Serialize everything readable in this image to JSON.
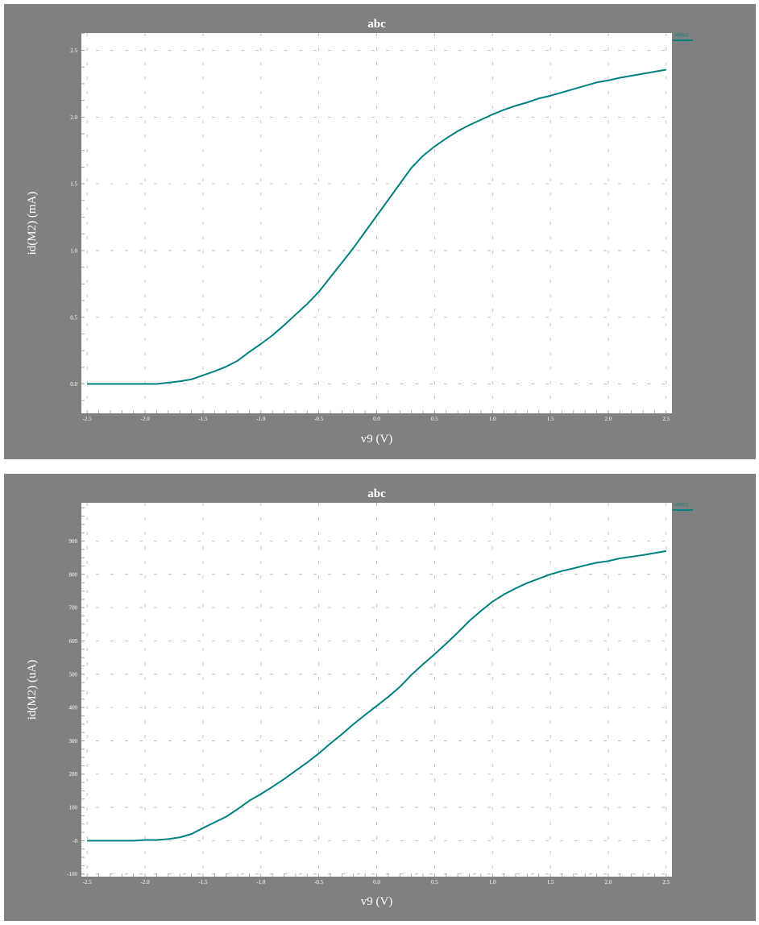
{
  "colors": {
    "panel_background": "#808080",
    "plot_background": "#ffffff",
    "series_line": "#008080",
    "grid": "#b4b4b4"
  },
  "chart_data": [
    {
      "type": "line",
      "title": "abc",
      "xlabel": "v9 (V)",
      "ylabel": "id(M2) (mA)",
      "xlim": [
        -2.55,
        2.55
      ],
      "ylim": [
        -0.22,
        2.63
      ],
      "xticks": [
        -2.5,
        -2.0,
        -1.5,
        -1.0,
        -0.5,
        0.0,
        0.5,
        1.0,
        1.5,
        2.0,
        2.5
      ],
      "xtick_labels": [
        "-2.5",
        "-2.0",
        "-1.5",
        "-1.0",
        "-0.5",
        "0.0",
        "0.5",
        "1.0",
        "1.5",
        "2.0",
        "2.5"
      ],
      "yticks": [
        0.0,
        0.5,
        1.0,
        1.5,
        2.0,
        2.5
      ],
      "ytick_labels": [
        "0.0",
        "0.5",
        "1.0",
        "1.5",
        "2.0",
        "2.5"
      ],
      "grid": true,
      "legend": "top-right",
      "series": [
        {
          "name": "id(M2)",
          "color": "#008080",
          "x": [
            -2.5,
            -2.3,
            -2.1,
            -1.9,
            -1.8,
            -1.7,
            -1.6,
            -1.5,
            -1.4,
            -1.3,
            -1.2,
            -1.1,
            -1.0,
            -0.9,
            -0.8,
            -0.7,
            -0.6,
            -0.5,
            -0.4,
            -0.3,
            -0.2,
            -0.1,
            0.0,
            0.1,
            0.2,
            0.3,
            0.4,
            0.5,
            0.6,
            0.7,
            0.8,
            0.9,
            1.0,
            1.1,
            1.2,
            1.3,
            1.4,
            1.5,
            1.6,
            1.7,
            1.8,
            1.9,
            2.0,
            2.1,
            2.2,
            2.3,
            2.4,
            2.5
          ],
          "y": [
            0.0,
            0.0,
            0.0,
            0.0,
            0.01,
            0.02,
            0.035,
            0.065,
            0.095,
            0.13,
            0.175,
            0.24,
            0.3,
            0.365,
            0.44,
            0.52,
            0.6,
            0.69,
            0.8,
            0.91,
            1.02,
            1.14,
            1.26,
            1.38,
            1.5,
            1.62,
            1.71,
            1.78,
            1.84,
            1.895,
            1.94,
            1.98,
            2.02,
            2.055,
            2.085,
            2.11,
            2.14,
            2.16,
            2.185,
            2.21,
            2.235,
            2.26,
            2.275,
            2.295,
            2.31,
            2.325,
            2.34,
            2.355
          ]
        }
      ]
    },
    {
      "type": "line",
      "title": "abc",
      "xlabel": "v9 (V)",
      "ylabel": "id(M2) (uA)",
      "xlim": [
        -2.55,
        2.55
      ],
      "ylim": [
        -108,
        1015
      ],
      "xticks": [
        -2.5,
        -2.0,
        -1.5,
        -1.0,
        -0.5,
        0.0,
        0.5,
        1.0,
        1.5,
        2.0,
        2.5
      ],
      "xtick_labels": [
        "-2.5",
        "-2.0",
        "-1.5",
        "-1.0",
        "-0.5",
        "0.0",
        "0.5",
        "1.0",
        "1.5",
        "2.0",
        "2.5"
      ],
      "yticks": [
        -100,
        0,
        100,
        200,
        300,
        400,
        500,
        600,
        700,
        800,
        900
      ],
      "ytick_labels": [
        "-100",
        "-0",
        "100",
        "200",
        "300",
        "400",
        "500",
        "600",
        "700",
        "800",
        "900"
      ],
      "grid": true,
      "legend": "top-right",
      "series": [
        {
          "name": "id(M2)",
          "color": "#008080",
          "x": [
            -2.5,
            -2.3,
            -2.1,
            -2.0,
            -1.9,
            -1.8,
            -1.7,
            -1.6,
            -1.5,
            -1.4,
            -1.3,
            -1.2,
            -1.1,
            -1.0,
            -0.9,
            -0.8,
            -0.7,
            -0.6,
            -0.5,
            -0.4,
            -0.3,
            -0.2,
            -0.1,
            0.0,
            0.1,
            0.2,
            0.3,
            0.4,
            0.5,
            0.6,
            0.7,
            0.8,
            0.9,
            1.0,
            1.1,
            1.2,
            1.3,
            1.4,
            1.5,
            1.6,
            1.7,
            1.8,
            1.9,
            2.0,
            2.1,
            2.2,
            2.3,
            2.4,
            2.5
          ],
          "y": [
            0,
            0,
            0,
            2,
            2,
            5,
            10,
            20,
            38,
            55,
            72,
            95,
            120,
            140,
            162,
            185,
            210,
            235,
            262,
            292,
            320,
            350,
            378,
            405,
            432,
            462,
            498,
            530,
            560,
            592,
            625,
            660,
            690,
            718,
            740,
            758,
            774,
            787,
            800,
            810,
            818,
            827,
            835,
            840,
            848,
            853,
            858,
            864,
            870
          ]
        }
      ]
    }
  ]
}
